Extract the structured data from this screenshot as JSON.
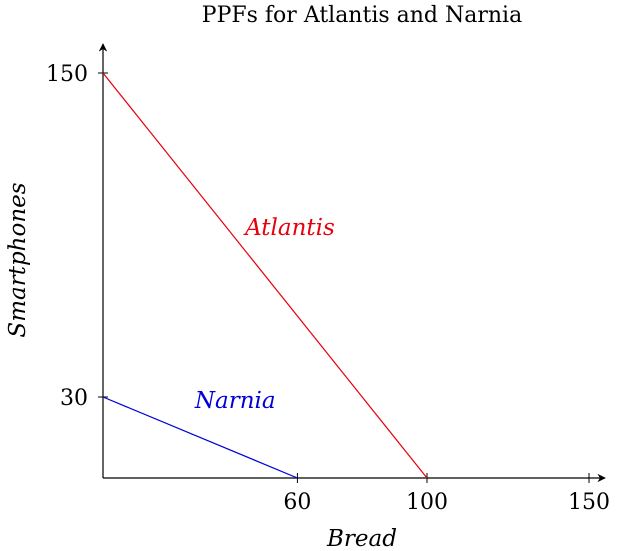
{
  "chart_data": {
    "type": "line",
    "title": "PPFs for Atlantis and Narnia",
    "xlabel": "Bread",
    "ylabel": "Smartphones",
    "x_ticks": [
      60,
      100,
      150
    ],
    "y_ticks": [
      30,
      150
    ],
    "xlim": [
      0,
      160
    ],
    "ylim": [
      0,
      160
    ],
    "grid": false,
    "series": [
      {
        "name": "Atlantis",
        "color": "#e6000f",
        "points": [
          [
            0,
            150
          ],
          [
            100,
            0
          ]
        ]
      },
      {
        "name": "Narnia",
        "color": "#0000d9",
        "points": [
          [
            0,
            30
          ],
          [
            60,
            0
          ]
        ]
      }
    ]
  }
}
